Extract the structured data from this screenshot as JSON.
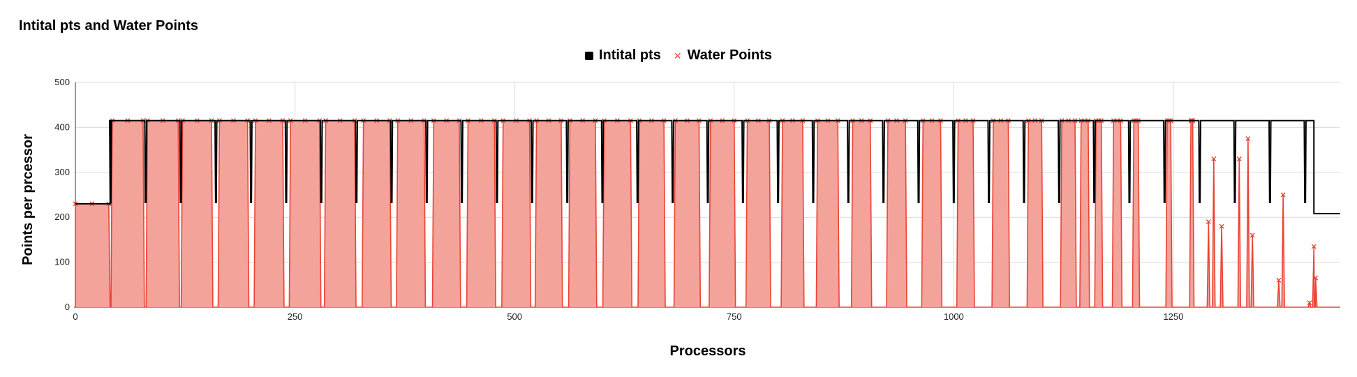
{
  "chart_data": {
    "type": "line",
    "title": "Intital pts and Water Points",
    "xlabel": "Processors",
    "ylabel": "Points per prcessor",
    "xlim": [
      0,
      1440
    ],
    "ylim": [
      0,
      500
    ],
    "x_ticks": [
      "0",
      "250",
      "500",
      "750",
      "1000",
      "1250"
    ],
    "y_ticks": [
      "0",
      "100",
      "200",
      "300",
      "400",
      "500"
    ],
    "grid": true,
    "legend_position": "top",
    "series": [
      {
        "name": "Intital pts",
        "color": "#000000",
        "marker": "none",
        "description": "step pattern: 230 for processors 0-39, then ~415 with periodic dips to ~233 every ~40 processors up to ~1410, then ~208 to the end",
        "segments": [
          [
            0,
            39,
            230
          ],
          [
            40,
            1409,
            415
          ],
          [
            1410,
            1440,
            208
          ]
        ],
        "dip_value": 233,
        "dip_positions": [
          40,
          80,
          120,
          160,
          200,
          240,
          280,
          320,
          360,
          400,
          440,
          480,
          520,
          560,
          600,
          640,
          680,
          720,
          760,
          800,
          840,
          880,
          920,
          960,
          1000,
          1040,
          1080,
          1120,
          1160,
          1200,
          1240,
          1280,
          1320,
          1360,
          1400
        ]
      },
      {
        "name": "Water Points",
        "color": "#ea4335",
        "marker": "x",
        "fill": "#f4a39b",
        "description": "filled area series: ~230 for processors 0-38, then blocks at ~415 separated by near-zero gaps; blocks become narrower and spikier past processor 800",
        "blocks": [
          [
            0,
            38,
            230
          ],
          [
            42,
            77,
            415
          ],
          [
            82,
            117,
            415
          ],
          [
            122,
            155,
            415
          ],
          [
            164,
            196,
            415
          ],
          [
            205,
            236,
            415
          ],
          [
            245,
            278,
            415
          ],
          [
            285,
            318,
            415
          ],
          [
            328,
            358,
            415
          ],
          [
            367,
            397,
            415
          ],
          [
            408,
            437,
            415
          ],
          [
            447,
            477,
            415
          ],
          [
            487,
            517,
            415
          ],
          [
            525,
            553,
            415
          ],
          [
            563,
            592,
            415
          ],
          [
            602,
            632,
            415
          ],
          [
            642,
            670,
            415
          ],
          [
            683,
            710,
            415
          ],
          [
            723,
            750,
            415
          ],
          [
            765,
            790,
            415
          ],
          [
            805,
            828,
            415
          ],
          [
            845,
            868,
            415
          ],
          [
            885,
            905,
            415
          ],
          [
            925,
            945,
            415
          ],
          [
            965,
            985,
            415
          ],
          [
            1005,
            1022,
            415
          ],
          [
            1045,
            1062,
            415
          ],
          [
            1085,
            1100,
            415
          ],
          [
            1123,
            1138,
            415
          ],
          [
            1145,
            1153,
            415
          ],
          [
            1162,
            1168,
            415
          ],
          [
            1182,
            1190,
            415
          ],
          [
            1205,
            1210,
            415
          ],
          [
            1243,
            1247,
            415
          ],
          [
            1270,
            1272,
            415
          ]
        ],
        "spikes": [
          [
            1290,
            190
          ],
          [
            1296,
            330
          ],
          [
            1305,
            180
          ],
          [
            1325,
            330
          ],
          [
            1335,
            375
          ],
          [
            1340,
            160
          ],
          [
            1370,
            60
          ],
          [
            1375,
            250
          ],
          [
            1405,
            10
          ],
          [
            1410,
            135
          ],
          [
            1412,
            65
          ]
        ]
      }
    ]
  }
}
